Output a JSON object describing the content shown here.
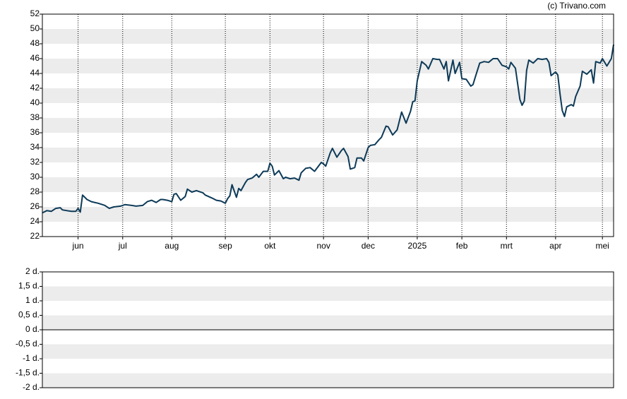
{
  "chart_data": [
    {
      "type": "line",
      "credit": "(c) Trivano.com",
      "color": "#0d3a58",
      "x": [
        0,
        2,
        4,
        6,
        8,
        9,
        11,
        13,
        15,
        16,
        17,
        18,
        20,
        22,
        25,
        27,
        28,
        30,
        32,
        35,
        37,
        40,
        42,
        45,
        47,
        49,
        51,
        53,
        54,
        56,
        58,
        59,
        60,
        62,
        64,
        65,
        67,
        69,
        72,
        73,
        76,
        78,
        80,
        82,
        83,
        84,
        85,
        87,
        88,
        89,
        91,
        92,
        94,
        96,
        97,
        99,
        101,
        102,
        103,
        104,
        106,
        108,
        109,
        111,
        113,
        115,
        116,
        118,
        120,
        122,
        123,
        125,
        126,
        127,
        129,
        130,
        132,
        134,
        135,
        137,
        138,
        140,
        141,
        143,
        144,
        146,
        147,
        149,
        151,
        152,
        154,
        155,
        157,
        159,
        161,
        163,
        165,
        166,
        167,
        168,
        170,
        172,
        173,
        175,
        177,
        178,
        180,
        181,
        182,
        184,
        185,
        187,
        188,
        190,
        192,
        193,
        194,
        196,
        198,
        200,
        202,
        204,
        206,
        208,
        209,
        210,
        212,
        214,
        215,
        216,
        217,
        218,
        220,
        222,
        224,
        226,
        227,
        228,
        230,
        231,
        232,
        233,
        234,
        235,
        237,
        238,
        239,
        241,
        242,
        244,
        246,
        247,
        248,
        250,
        251,
        253,
        255,
        256
      ],
      "values": [
        25.2,
        25.5,
        25.4,
        25.8,
        25.9,
        25.6,
        25.5,
        25.4,
        25.4,
        25.8,
        25.3,
        27.6,
        27.0,
        26.7,
        26.5,
        26.3,
        26.2,
        25.8,
        26.0,
        26.1,
        26.3,
        26.2,
        26.1,
        26.2,
        26.7,
        26.9,
        26.6,
        27.0,
        27.0,
        26.9,
        26.7,
        27.7,
        27.8,
        26.9,
        27.4,
        28.4,
        28.0,
        28.2,
        27.9,
        27.6,
        27.2,
        26.9,
        26.8,
        26.5,
        27.1,
        27.5,
        29.0,
        27.3,
        28.5,
        28.2,
        29.3,
        29.7,
        29.9,
        30.4,
        30.0,
        30.8,
        30.8,
        31.9,
        31.5,
        30.3,
        30.9,
        29.8,
        30.0,
        29.8,
        29.9,
        29.6,
        30.6,
        31.2,
        31.3,
        30.8,
        31.2,
        32.0,
        31.8,
        31.5,
        33.3,
        33.9,
        32.7,
        33.6,
        33.9,
        32.8,
        31.1,
        31.3,
        32.6,
        32.6,
        32.2,
        34.0,
        34.3,
        34.4,
        35.1,
        35.4,
        36.9,
        36.8,
        35.7,
        36.4,
        38.8,
        37.3,
        38.9,
        40.2,
        40.3,
        43.0,
        45.6,
        45.1,
        44.6,
        46.0,
        45.9,
        45.9,
        44.6,
        45.6,
        43.0,
        45.8,
        44.0,
        45.5,
        43.3,
        43.2,
        42.3,
        42.5,
        43.5,
        45.4,
        45.6,
        45.5,
        46.0,
        46.0,
        45.1,
        44.9,
        44.6,
        45.5,
        44.7,
        40.5,
        39.7,
        40.3,
        44.4,
        45.8,
        45.4,
        46.0,
        45.9,
        46.0,
        45.5,
        43.7,
        44.2,
        43.8,
        41.2,
        39.0,
        38.2,
        39.5,
        39.8,
        39.6,
        40.9,
        42.3,
        44.3,
        43.9,
        44.5,
        42.7,
        45.6,
        45.4,
        46.0,
        45.0,
        46.0,
        47.9
      ],
      "xlim": [
        0,
        256
      ],
      "xticks": [
        {
          "value": 16,
          "label": "jun"
        },
        {
          "value": 36,
          "label": "jul"
        },
        {
          "value": 58,
          "label": "aug"
        },
        {
          "value": 82,
          "label": "sep"
        },
        {
          "value": 102,
          "label": "okt"
        },
        {
          "value": 126,
          "label": "nov"
        },
        {
          "value": 146,
          "label": "dec"
        },
        {
          "value": 168,
          "label": "2025"
        },
        {
          "value": 188,
          "label": "feb"
        },
        {
          "value": 208,
          "label": "mrt"
        },
        {
          "value": 230,
          "label": "apr"
        },
        {
          "value": 251,
          "label": "mei"
        }
      ],
      "ylim": [
        22,
        52
      ],
      "yticks": [
        22,
        24,
        26,
        28,
        30,
        32,
        34,
        36,
        38,
        40,
        42,
        44,
        46,
        48,
        50,
        52
      ]
    },
    {
      "type": "empty",
      "ylim": [
        -2,
        2
      ],
      "yticks": [
        {
          "value": 2,
          "label": "2 d."
        },
        {
          "value": 1.5,
          "label": "1,5 d."
        },
        {
          "value": 1,
          "label": "1 d."
        },
        {
          "value": 0.5,
          "label": "0,5 d."
        },
        {
          "value": 0,
          "label": "0 d."
        },
        {
          "value": -0.5,
          "label": "-0,5 d."
        },
        {
          "value": -1,
          "label": "-1 d."
        },
        {
          "value": -1.5,
          "label": "-1,5 d."
        },
        {
          "value": -2,
          "label": "-2 d."
        }
      ]
    }
  ]
}
